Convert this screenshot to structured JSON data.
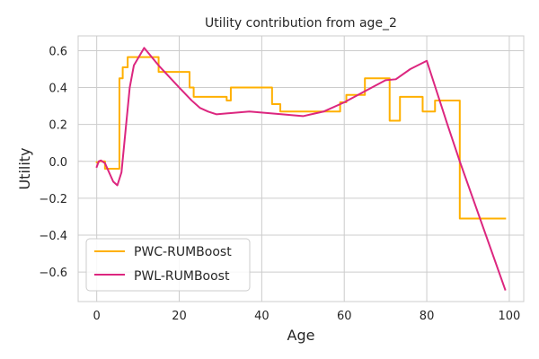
{
  "chart_data": {
    "type": "line",
    "title": "Utility contribution from age_2",
    "xlabel": "Age",
    "ylabel": "Utility",
    "xlim": [
      -4.5,
      103.5
    ],
    "ylim": [
      -0.76,
      0.68
    ],
    "xticks": [
      0,
      20,
      40,
      60,
      80,
      100
    ],
    "yticks": [
      -0.6,
      -0.4,
      -0.2,
      0.0,
      0.2,
      0.4,
      0.6
    ],
    "xtick_labels": [
      "0",
      "20",
      "40",
      "60",
      "80",
      "100"
    ],
    "ytick_labels": [
      "−0.6",
      "−0.4",
      "−0.2",
      "0.0",
      "0.2",
      "0.4",
      "0.6"
    ],
    "grid": true,
    "legend_position": "lower-left",
    "series": [
      {
        "name": "PWC-RUMBoost",
        "color": "#FFB000",
        "step": true,
        "x": [
          0,
          0.5,
          0.5,
          2,
          2,
          5.5,
          5.5,
          6.3,
          6.3,
          7.5,
          7.5,
          15,
          15,
          22.5,
          22.5,
          23.5,
          23.5,
          31.5,
          31.5,
          32.5,
          32.5,
          42.5,
          42.5,
          44.5,
          44.5,
          59,
          59,
          60.5,
          60.5,
          65,
          65,
          71,
          71,
          73.5,
          73.5,
          79,
          79,
          82,
          82,
          88,
          88,
          99
        ],
        "y": [
          -0.005,
          -0.005,
          0.0,
          0.0,
          -0.04,
          -0.04,
          0.45,
          0.45,
          0.51,
          0.51,
          0.565,
          0.565,
          0.485,
          0.485,
          0.4,
          0.4,
          0.35,
          0.35,
          0.33,
          0.33,
          0.4,
          0.4,
          0.31,
          0.31,
          0.27,
          0.27,
          0.32,
          0.32,
          0.36,
          0.36,
          0.45,
          0.45,
          0.22,
          0.22,
          0.35,
          0.35,
          0.27,
          0.27,
          0.33,
          0.33,
          -0.31,
          -0.31
        ]
      },
      {
        "name": "PWL-RUMBoost",
        "color": "#DC267F",
        "step": false,
        "x": [
          0,
          0.5,
          1,
          2,
          4,
          5,
          6,
          8,
          9,
          11.5,
          15,
          20,
          23,
          25,
          27,
          29,
          37,
          45,
          50,
          55,
          60,
          65,
          70,
          72.5,
          76,
          80,
          85,
          88,
          99
        ],
        "y": [
          -0.03,
          0.0,
          0.005,
          -0.01,
          -0.11,
          -0.13,
          -0.06,
          0.4,
          0.52,
          0.615,
          0.52,
          0.4,
          0.33,
          0.29,
          0.27,
          0.255,
          0.27,
          0.255,
          0.245,
          0.27,
          0.32,
          0.38,
          0.44,
          0.445,
          0.5,
          0.545,
          0.2,
          0.0,
          -0.695
        ]
      }
    ]
  }
}
